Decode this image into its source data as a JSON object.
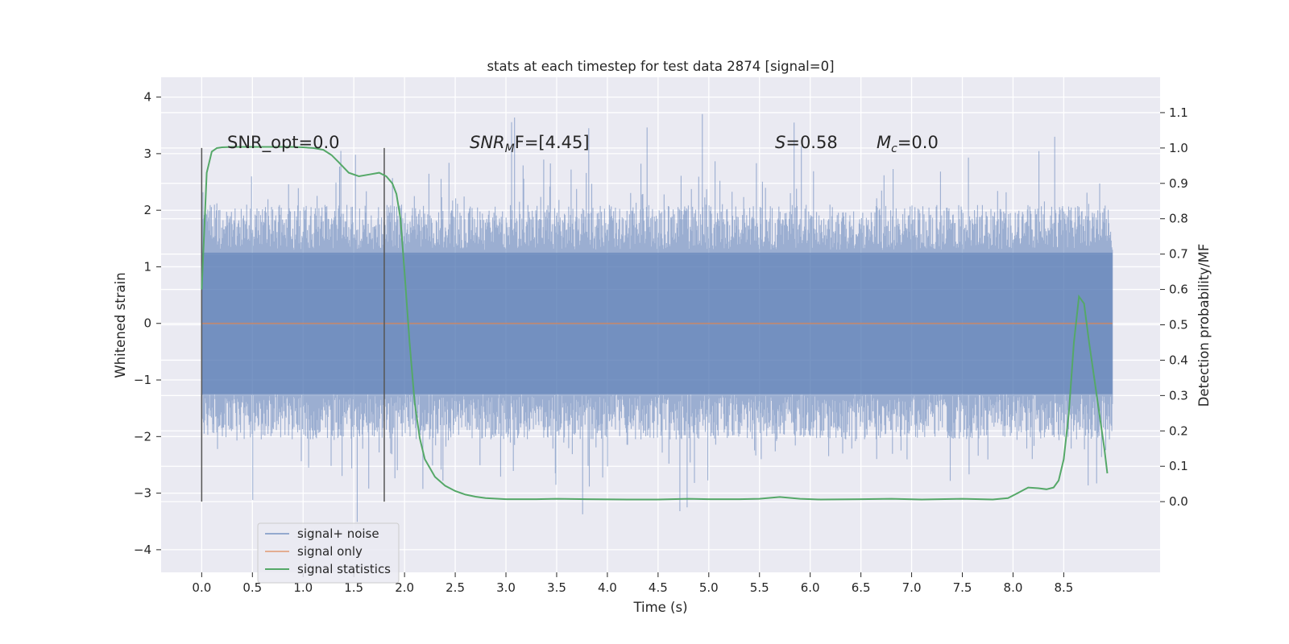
{
  "chart_data": {
    "type": "line",
    "title": "stats at each timestep for test data 2874 [signal=0]",
    "xlabel": "Time (s)",
    "ylabel_left": "Whitened strain",
    "ylabel_right": "Detection probability/MF",
    "xlim": [
      -0.4,
      9.45
    ],
    "ylim_left": [
      -4.4,
      4.35
    ],
    "ylim_right": [
      -0.2,
      1.2
    ],
    "x_ticks": [
      0.0,
      0.5,
      1.0,
      1.5,
      2.0,
      2.5,
      3.0,
      3.5,
      4.0,
      4.5,
      5.0,
      5.5,
      6.0,
      6.5,
      7.0,
      7.5,
      8.0,
      8.5
    ],
    "x_tick_labels": [
      "0.0",
      "0.5",
      "1.0",
      "1.5",
      "2.0",
      "2.5",
      "3.0",
      "3.5",
      "4.0",
      "4.5",
      "5.0",
      "5.5",
      "6.0",
      "6.5",
      "7.0",
      "7.5",
      "8.0",
      "8.5"
    ],
    "y_left_ticks": [
      4,
      3,
      2,
      1,
      0,
      -1,
      -2,
      -3,
      -4
    ],
    "y_left_tick_labels": [
      "4",
      "3",
      "2",
      "1",
      "0",
      "−1",
      "−2",
      "−3",
      "−4"
    ],
    "y_right_ticks": [
      1.1,
      1.0,
      0.9,
      0.8,
      0.7,
      0.6,
      0.5,
      0.4,
      0.3,
      0.2,
      0.1,
      0.0
    ],
    "y_right_tick_labels": [
      "1.1",
      "1.0",
      "0.9",
      "0.8",
      "0.7",
      "0.6",
      "0.5",
      "0.4",
      "0.3",
      "0.2",
      "0.1",
      "0.0"
    ],
    "grid": true,
    "legend_position": "lower-left",
    "noise": {
      "x_start": 0.0,
      "x_end": 8.98,
      "typical_max": 1.8,
      "typical_min": -1.7,
      "core_band": [
        -1.25,
        1.25
      ],
      "max_peak": 4.0,
      "min_peak": -3.6
    },
    "series": [
      {
        "name": "signal+ noise",
        "color": "#4c72b0",
        "axis": "left",
        "style": "filled-band"
      },
      {
        "name": "signal only",
        "color": "#dd8452",
        "axis": "left",
        "x": [
          0.0,
          8.98
        ],
        "y": [
          0.0,
          0.0
        ]
      },
      {
        "name": "signal statistics",
        "color": "#55a868",
        "axis": "right",
        "x": [
          0.0,
          0.05,
          0.1,
          0.15,
          0.2,
          0.3,
          0.5,
          0.7,
          0.9,
          1.0,
          1.1,
          1.2,
          1.28,
          1.35,
          1.45,
          1.55,
          1.65,
          1.75,
          1.82,
          1.88,
          1.92,
          1.96,
          2.0,
          2.05,
          2.1,
          2.15,
          2.2,
          2.3,
          2.4,
          2.5,
          2.6,
          2.7,
          2.8,
          3.0,
          3.3,
          3.5,
          3.8,
          4.2,
          4.5,
          4.8,
          5.0,
          5.3,
          5.5,
          5.7,
          5.9,
          6.1,
          6.5,
          6.8,
          7.1,
          7.5,
          7.8,
          7.95,
          8.05,
          8.15,
          8.25,
          8.33,
          8.4,
          8.45,
          8.5,
          8.55,
          8.6,
          8.65,
          8.7,
          8.75,
          8.8,
          8.85,
          8.9,
          8.93
        ],
        "y": [
          0.6,
          0.93,
          0.99,
          1.0,
          1.002,
          1.003,
          1.003,
          1.003,
          1.003,
          1.002,
          1.0,
          0.995,
          0.98,
          0.96,
          0.93,
          0.92,
          0.925,
          0.93,
          0.92,
          0.9,
          0.87,
          0.8,
          0.65,
          0.45,
          0.28,
          0.18,
          0.12,
          0.07,
          0.045,
          0.03,
          0.02,
          0.014,
          0.01,
          0.007,
          0.007,
          0.008,
          0.007,
          0.006,
          0.006,
          0.008,
          0.007,
          0.007,
          0.008,
          0.013,
          0.008,
          0.006,
          0.007,
          0.008,
          0.006,
          0.008,
          0.006,
          0.01,
          0.025,
          0.04,
          0.038,
          0.035,
          0.04,
          0.06,
          0.12,
          0.25,
          0.45,
          0.58,
          0.56,
          0.45,
          0.35,
          0.25,
          0.15,
          0.08
        ]
      }
    ],
    "vlines": [
      {
        "x": 0.0,
        "y_range": [
          -3.15,
          3.1
        ],
        "color": "#555555"
      },
      {
        "x": 1.8,
        "y_range": [
          -3.15,
          3.1
        ],
        "color": "#555555"
      }
    ],
    "annotations": [
      {
        "text": "SNR_opt=0.0",
        "x": 0.2,
        "y": 3.0
      },
      {
        "text_main": "SNR",
        "text_sub": "M",
        "text_tail": "F=[4.45]",
        "x": 2.6,
        "y": 3.0
      },
      {
        "text_main": "S",
        "text_tail": "=0.58",
        "x": 5.6,
        "y": 3.0
      },
      {
        "text_main": "M",
        "text_sub": "c",
        "text_tail": "=0.0",
        "x": 6.6,
        "y": 3.0
      }
    ]
  }
}
